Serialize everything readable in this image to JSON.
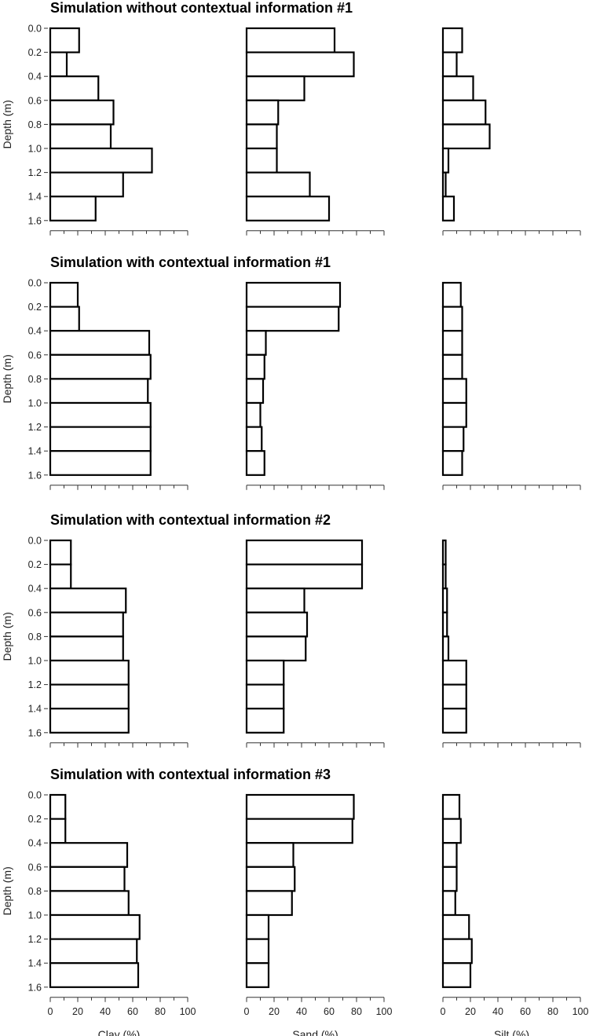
{
  "figure": {
    "ylabel": "Depth (m)",
    "xlabels": [
      "Clay (%)",
      "Sand (%)",
      "Silt (%)"
    ],
    "depth_ticks": [
      "0.0",
      "0.2",
      "0.4",
      "0.6",
      "0.8",
      "1.0",
      "1.2",
      "1.4",
      "1.6"
    ],
    "x_ticks": [
      "0",
      "20",
      "40",
      "60",
      "80",
      "100"
    ]
  },
  "chart_data": [
    {
      "type": "bar",
      "orientation": "horizontal",
      "title": "Simulation without contextual information #1",
      "categories": [
        "0.0-0.2",
        "0.2-0.4",
        "0.4-0.6",
        "0.6-0.8",
        "0.8-1.0",
        "1.0-1.2",
        "1.2-1.4",
        "1.4-1.6"
      ],
      "ylabel": "Depth (m)",
      "ylim": [
        0,
        1.6
      ],
      "xlim": [
        0,
        100
      ],
      "series": [
        {
          "name": "Clay (%)",
          "values": [
            21,
            12,
            35,
            46,
            44,
            74,
            53,
            33
          ]
        },
        {
          "name": "Sand (%)",
          "values": [
            64,
            78,
            42,
            23,
            22,
            22,
            46,
            60
          ]
        },
        {
          "name": "Silt (%)",
          "values": [
            14,
            10,
            22,
            31,
            34,
            4,
            2,
            8
          ]
        }
      ]
    },
    {
      "type": "bar",
      "orientation": "horizontal",
      "title": "Simulation with contextual information #1",
      "categories": [
        "0.0-0.2",
        "0.2-0.4",
        "0.4-0.6",
        "0.6-0.8",
        "0.8-1.0",
        "1.0-1.2",
        "1.2-1.4",
        "1.4-1.6"
      ],
      "ylabel": "Depth (m)",
      "ylim": [
        0,
        1.6
      ],
      "xlim": [
        0,
        100
      ],
      "series": [
        {
          "name": "Clay (%)",
          "values": [
            20,
            21,
            72,
            73,
            71,
            73,
            73,
            73
          ]
        },
        {
          "name": "Sand (%)",
          "values": [
            68,
            67,
            14,
            13,
            12,
            10,
            11,
            13
          ]
        },
        {
          "name": "Silt (%)",
          "values": [
            13,
            14,
            14,
            14,
            17,
            17,
            15,
            14
          ]
        }
      ]
    },
    {
      "type": "bar",
      "orientation": "horizontal",
      "title": "Simulation with contextual information #2",
      "categories": [
        "0.0-0.2",
        "0.2-0.4",
        "0.4-0.6",
        "0.6-0.8",
        "0.8-1.0",
        "1.0-1.2",
        "1.2-1.4",
        "1.4-1.6"
      ],
      "ylabel": "Depth (m)",
      "ylim": [
        0,
        1.6
      ],
      "xlim": [
        0,
        100
      ],
      "series": [
        {
          "name": "Clay (%)",
          "values": [
            15,
            15,
            55,
            53,
            53,
            57,
            57,
            57
          ]
        },
        {
          "name": "Sand (%)",
          "values": [
            84,
            84,
            42,
            44,
            43,
            27,
            27,
            27
          ]
        },
        {
          "name": "Silt (%)",
          "values": [
            2,
            2,
            3,
            3,
            4,
            17,
            17,
            17
          ]
        }
      ]
    },
    {
      "type": "bar",
      "orientation": "horizontal",
      "title": "Simulation with contextual information #3",
      "categories": [
        "0.0-0.2",
        "0.2-0.4",
        "0.4-0.6",
        "0.6-0.8",
        "0.8-1.0",
        "1.0-1.2",
        "1.2-1.4",
        "1.4-1.6"
      ],
      "ylabel": "Depth (m)",
      "ylim": [
        0,
        1.6
      ],
      "xlim": [
        0,
        100
      ],
      "series": [
        {
          "name": "Clay (%)",
          "values": [
            11,
            11,
            56,
            54,
            57,
            65,
            63,
            64
          ]
        },
        {
          "name": "Sand (%)",
          "values": [
            78,
            77,
            34,
            35,
            33,
            16,
            16,
            16
          ]
        },
        {
          "name": "Silt (%)",
          "values": [
            12,
            13,
            10,
            10,
            9,
            19,
            21,
            20
          ]
        }
      ]
    }
  ]
}
